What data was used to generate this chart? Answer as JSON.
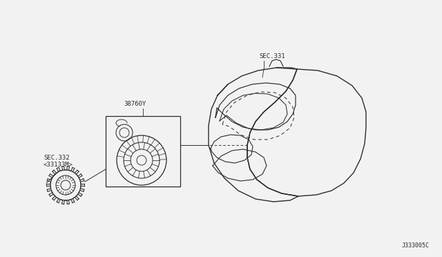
{
  "bg_color": "#f2f2f2",
  "line_color": "#2a2a2a",
  "text_color": "#2a2a2a",
  "label_sec331": "SEC.331",
  "label_38760Y": "38760Y",
  "label_sec332_line1": "SEC.332",
  "label_sec332_line2": "<33133M>",
  "diagram_id": "J333005C",
  "font_size": 6.5,
  "font_size_id": 6.0
}
